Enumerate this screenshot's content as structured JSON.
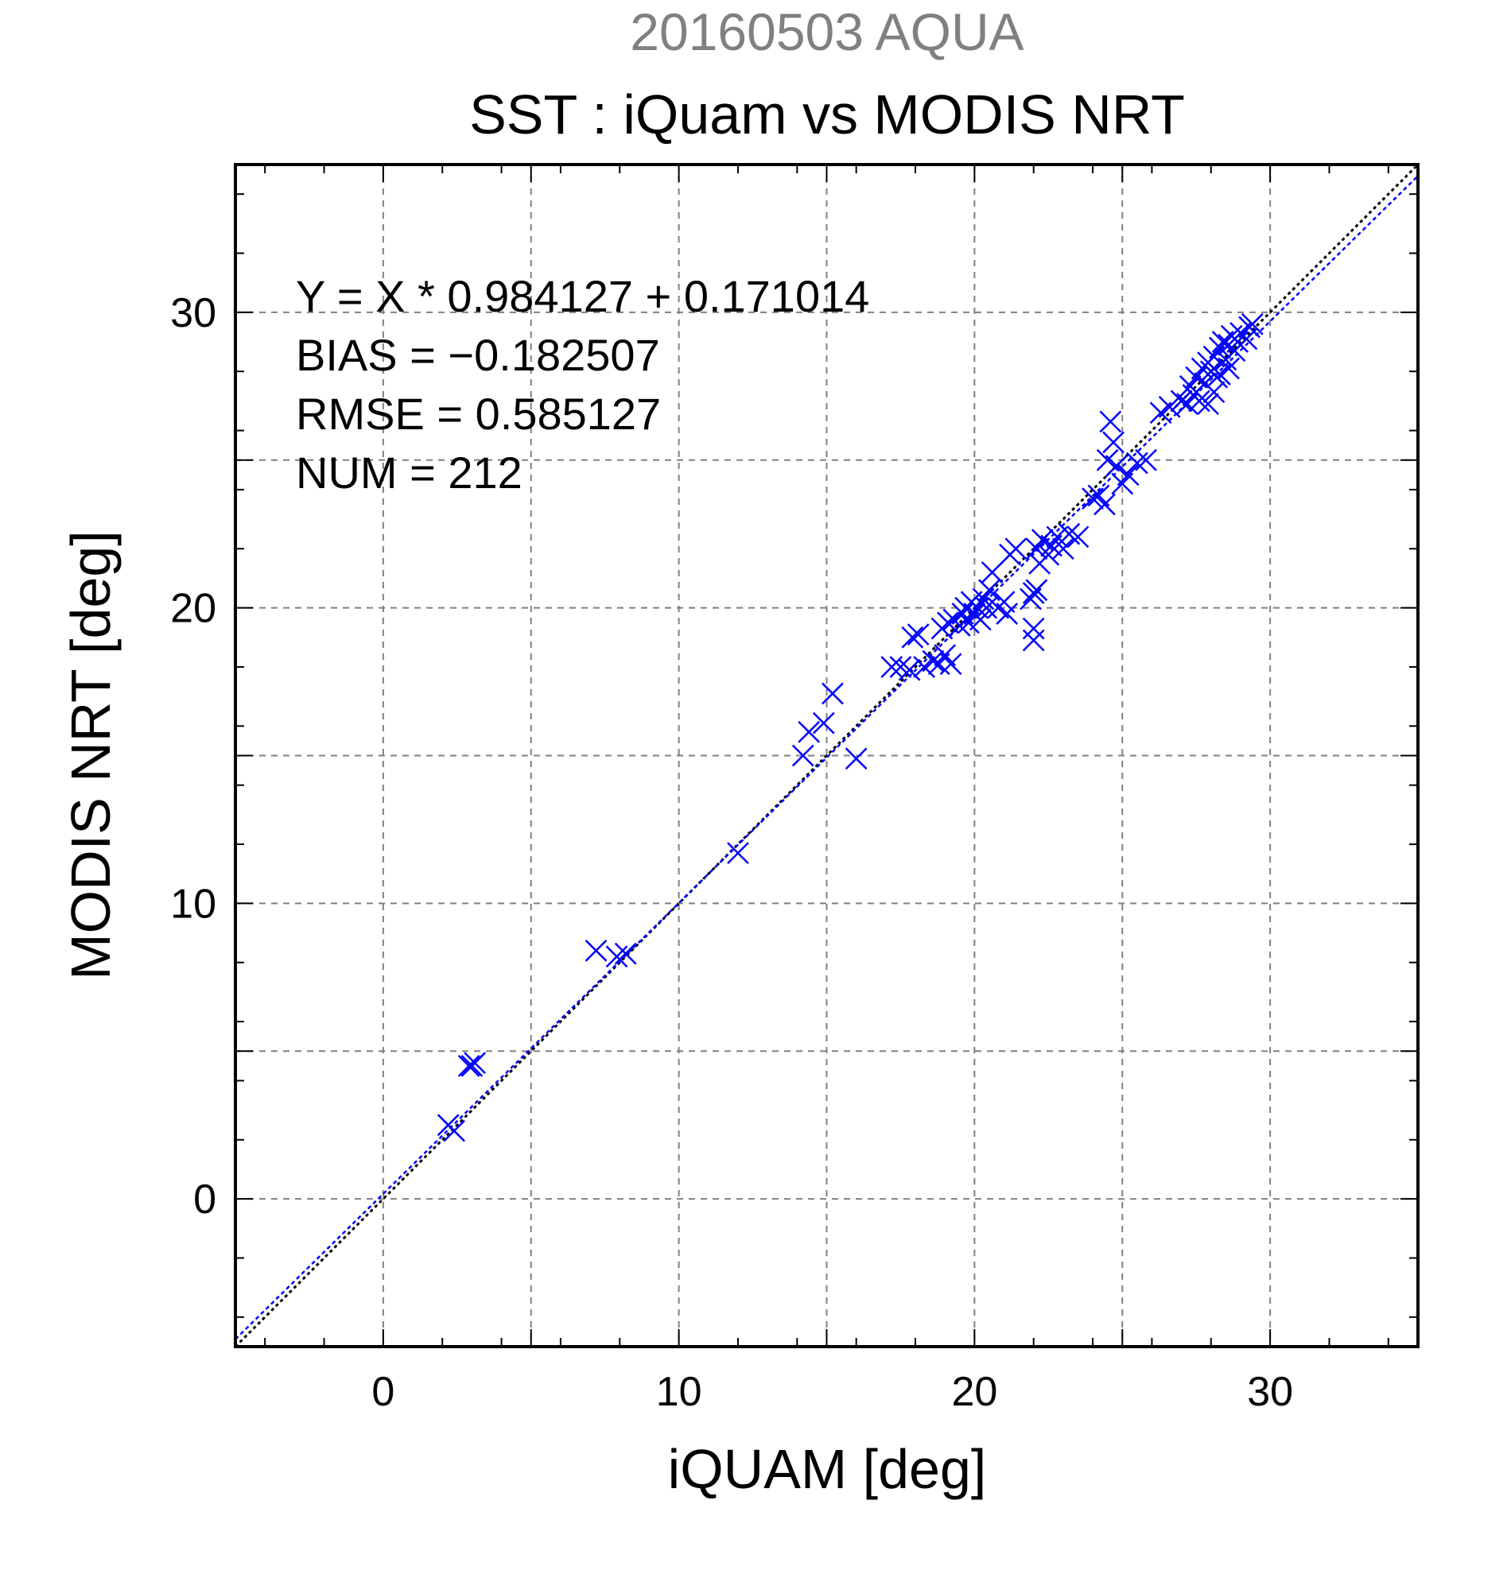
{
  "chart_data": {
    "type": "scatter",
    "supertitle": "20160503 AQUA",
    "title": "SST : iQuam vs MODIS NRT",
    "xlabel": "iQUAM [deg]",
    "ylabel": "MODIS NRT [deg]",
    "xlim": [
      -5,
      35
    ],
    "ylim": [
      -5,
      35
    ],
    "xticks": [
      0,
      10,
      20,
      30
    ],
    "yticks": [
      0,
      10,
      20,
      30
    ],
    "xticklabels": [
      "0",
      "10",
      "20",
      "30"
    ],
    "yticklabels": [
      "0",
      "10",
      "20",
      "30"
    ],
    "grid": true,
    "annotations": [
      "Y = X * 0.984127 + 0.171014",
      "BIAS = −0.182507",
      "RMSE = 0.585127",
      "NUM = 212"
    ],
    "fit_line": {
      "slope": 0.984127,
      "intercept": 0.171014
    },
    "identity_line": {
      "slope": 1,
      "intercept": 0
    },
    "colors": {
      "supertitle": "#808080",
      "points": "#0000ff",
      "fit": "#0000ff",
      "identity": "#000000",
      "grid": "#808080"
    },
    "series": [
      {
        "marker": "x",
        "points": [
          [
            2.2,
            2.5
          ],
          [
            2.4,
            2.3
          ],
          [
            2.9,
            4.5
          ],
          [
            3.0,
            4.5
          ],
          [
            3.1,
            4.6
          ],
          [
            7.2,
            8.4
          ],
          [
            7.9,
            8.2
          ],
          [
            8.2,
            8.3
          ],
          [
            12.0,
            11.7
          ],
          [
            14.2,
            15.0
          ],
          [
            14.4,
            15.8
          ],
          [
            14.9,
            16.1
          ],
          [
            15.2,
            17.1
          ],
          [
            16.0,
            14.9
          ],
          [
            17.2,
            18.0
          ],
          [
            17.5,
            18.0
          ],
          [
            17.8,
            17.9
          ],
          [
            17.9,
            19.0
          ],
          [
            18.1,
            19.1
          ],
          [
            18.3,
            18.0
          ],
          [
            18.6,
            18.2
          ],
          [
            18.8,
            18.1
          ],
          [
            18.9,
            19.3
          ],
          [
            19.0,
            18.4
          ],
          [
            19.1,
            19.5
          ],
          [
            19.2,
            18.1
          ],
          [
            19.3,
            19.6
          ],
          [
            19.5,
            19.4
          ],
          [
            19.6,
            19.8
          ],
          [
            19.7,
            20.0
          ],
          [
            19.8,
            19.5
          ],
          [
            19.9,
            20.2
          ],
          [
            20.0,
            19.8
          ],
          [
            20.1,
            20.0
          ],
          [
            20.2,
            19.6
          ],
          [
            20.3,
            20.3
          ],
          [
            20.4,
            20.0
          ],
          [
            20.5,
            20.6
          ],
          [
            20.6,
            21.2
          ],
          [
            20.8,
            20.0
          ],
          [
            21.0,
            20.2
          ],
          [
            21.1,
            19.8
          ],
          [
            21.2,
            21.8
          ],
          [
            21.4,
            22.0
          ],
          [
            21.9,
            20.3
          ],
          [
            22.0,
            20.5
          ],
          [
            22.0,
            19.3
          ],
          [
            22.0,
            18.9
          ],
          [
            22.1,
            20.6
          ],
          [
            22.1,
            22.0
          ],
          [
            22.2,
            21.5
          ],
          [
            22.3,
            22.3
          ],
          [
            22.5,
            21.8
          ],
          [
            22.6,
            22.1
          ],
          [
            22.8,
            22.4
          ],
          [
            23.0,
            22.0
          ],
          [
            23.2,
            22.5
          ],
          [
            23.5,
            22.4
          ],
          [
            24.0,
            23.7
          ],
          [
            24.2,
            23.8
          ],
          [
            24.4,
            23.5
          ],
          [
            24.5,
            25.0
          ],
          [
            24.6,
            26.3
          ],
          [
            24.7,
            25.6
          ],
          [
            24.8,
            24.8
          ],
          [
            25.0,
            24.2
          ],
          [
            25.2,
            24.5
          ],
          [
            25.5,
            24.9
          ],
          [
            25.8,
            25.0
          ],
          [
            26.3,
            26.6
          ],
          [
            26.6,
            26.8
          ],
          [
            27.0,
            27.0
          ],
          [
            27.2,
            26.9
          ],
          [
            27.3,
            27.5
          ],
          [
            27.5,
            27.8
          ],
          [
            27.6,
            27.0
          ],
          [
            27.7,
            28.1
          ],
          [
            27.8,
            27.6
          ],
          [
            27.9,
            28.3
          ],
          [
            28.0,
            28.0
          ],
          [
            28.1,
            28.5
          ],
          [
            28.2,
            27.8
          ],
          [
            28.3,
            28.8
          ],
          [
            28.4,
            29.0
          ],
          [
            28.5,
            28.4
          ],
          [
            28.6,
            28.9
          ],
          [
            28.7,
            29.2
          ],
          [
            28.8,
            28.7
          ],
          [
            28.9,
            29.0
          ],
          [
            29.0,
            29.3
          ],
          [
            29.2,
            29.1
          ],
          [
            29.3,
            29.5
          ],
          [
            29.4,
            29.6
          ],
          [
            27.4,
            27.2
          ],
          [
            27.9,
            26.9
          ],
          [
            28.1,
            27.3
          ],
          [
            28.3,
            27.9
          ],
          [
            28.6,
            28.1
          ]
        ]
      }
    ]
  }
}
